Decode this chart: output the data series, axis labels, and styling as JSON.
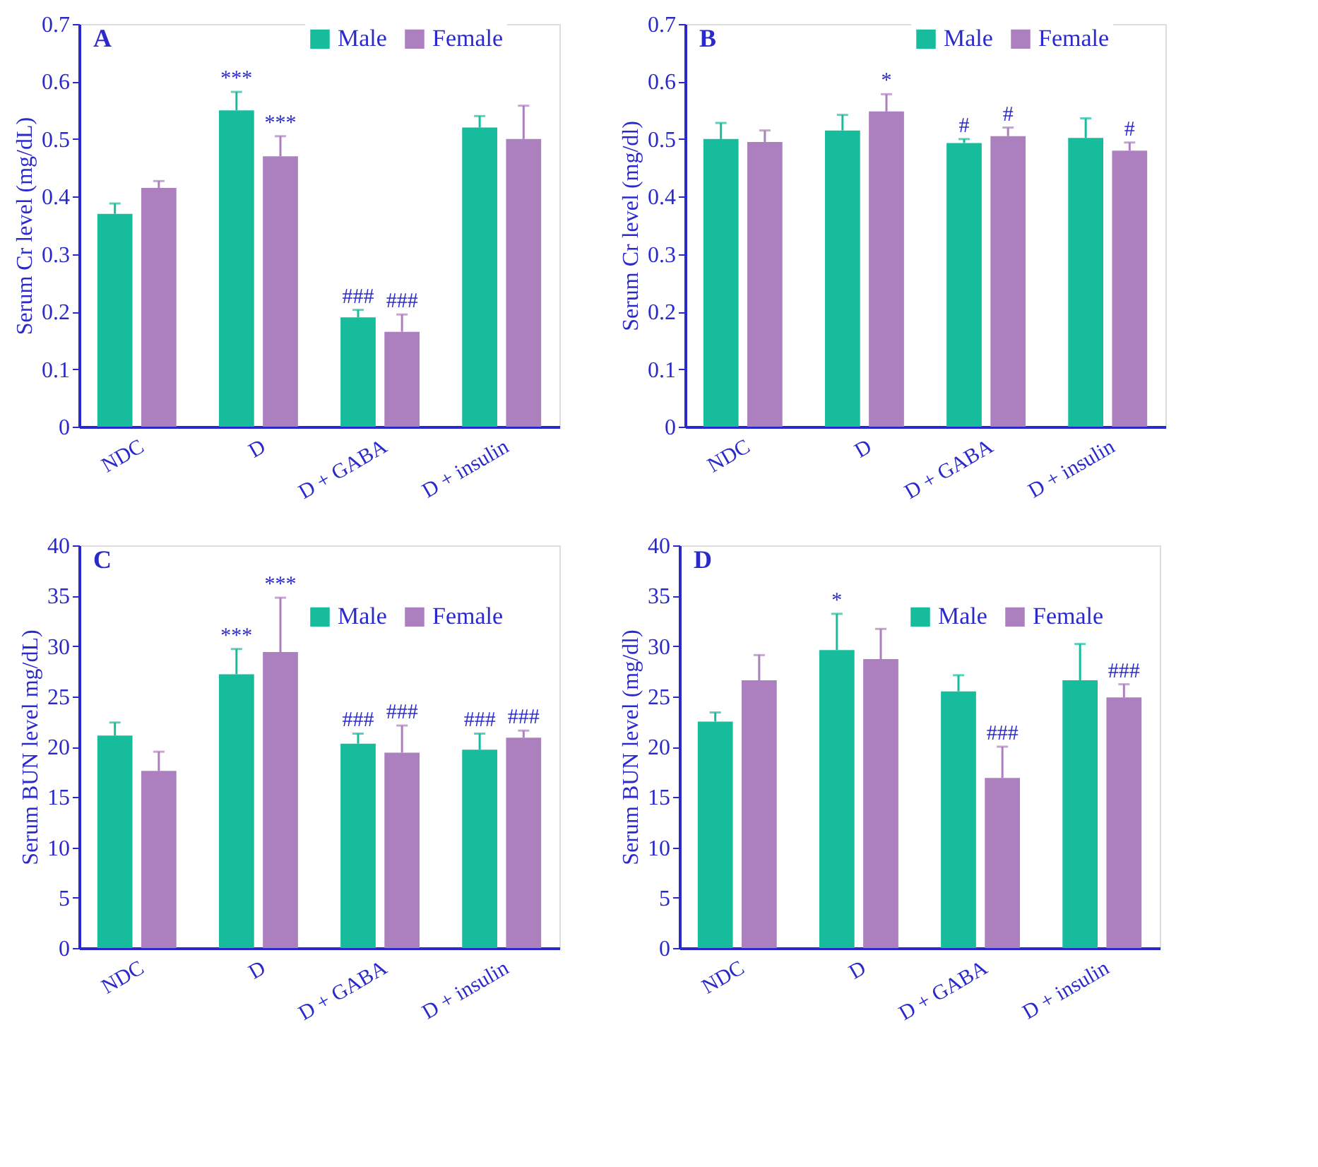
{
  "chart_data": [
    {
      "type": "bar",
      "title": "A",
      "ylabel": "Serum Cr level (mg/dL)",
      "categories": [
        "NDC",
        "D",
        "D + GABA",
        "D + insulin"
      ],
      "series": [
        {
          "name": "Male",
          "color": "#16bc9c",
          "values": [
            0.37,
            0.55,
            0.19,
            0.52
          ],
          "errors": [
            0.018,
            0.032,
            0.013,
            0.02
          ],
          "value_labels": [
            null,
            "***",
            "###",
            null
          ]
        },
        {
          "name": "Female",
          "color": "#ac7fbf",
          "values": [
            0.415,
            0.47,
            0.165,
            0.5
          ],
          "errors": [
            0.012,
            0.035,
            0.03,
            0.058
          ],
          "value_labels": [
            null,
            "***",
            "###",
            null
          ]
        }
      ],
      "ylim": [
        0,
        0.7
      ],
      "yticks": [
        0,
        0.1,
        0.2,
        0.3,
        0.4,
        0.5,
        0.6,
        0.7
      ],
      "legend": "top right",
      "grid": false
    },
    {
      "type": "bar",
      "title": "B",
      "ylabel": "Serum Cr level (mg/dl)",
      "categories": [
        "NDC",
        "D",
        "D + GABA",
        "D + insulin"
      ],
      "series": [
        {
          "name": "Male",
          "color": "#16bc9c",
          "values": [
            0.5,
            0.515,
            0.493,
            0.502
          ],
          "errors": [
            0.028,
            0.027,
            0.007,
            0.034
          ],
          "value_labels": [
            null,
            null,
            "#",
            null
          ]
        },
        {
          "name": "Female",
          "color": "#ac7fbf",
          "values": [
            0.495,
            0.548,
            0.505,
            0.48
          ],
          "errors": [
            0.02,
            0.03,
            0.015,
            0.014
          ],
          "value_labels": [
            null,
            "*",
            "#",
            "#"
          ]
        }
      ],
      "ylim": [
        0,
        0.7
      ],
      "yticks": [
        0,
        0.1,
        0.2,
        0.3,
        0.4,
        0.5,
        0.6,
        0.7
      ],
      "legend": "top right",
      "grid": false
    },
    {
      "type": "bar",
      "title": "C",
      "ylabel": "Serum BUN level mg/dL)",
      "categories": [
        "NDC",
        "D",
        "D + GABA",
        "D + insulin"
      ],
      "series": [
        {
          "name": "Male",
          "color": "#16bc9c",
          "values": [
            21.1,
            27.2,
            20.3,
            19.7
          ],
          "errors": [
            1.3,
            2.5,
            1.0,
            1.6
          ],
          "value_labels": [
            null,
            "***",
            "###",
            "###"
          ]
        },
        {
          "name": "Female",
          "color": "#ac7fbf",
          "values": [
            17.6,
            29.4,
            19.4,
            20.9
          ],
          "errors": [
            1.9,
            5.4,
            2.7,
            0.7
          ],
          "value_labels": [
            null,
            "***",
            "###",
            "###"
          ]
        }
      ],
      "ylim": [
        0,
        40
      ],
      "yticks": [
        0,
        5,
        10,
        15,
        20,
        25,
        30,
        35,
        40
      ],
      "legend": "top right",
      "grid": false
    },
    {
      "type": "bar",
      "title": "D",
      "ylabel": "Serum BUN level (mg/dl)",
      "categories": [
        "NDC",
        "D",
        "D + GABA",
        "D + insulin"
      ],
      "series": [
        {
          "name": "Male",
          "color": "#16bc9c",
          "values": [
            22.5,
            29.6,
            25.5,
            26.6
          ],
          "errors": [
            0.9,
            3.6,
            1.6,
            3.6
          ],
          "value_labels": [
            null,
            "*",
            null,
            null
          ]
        },
        {
          "name": "Female",
          "color": "#ac7fbf",
          "values": [
            26.6,
            28.7,
            16.9,
            24.9
          ],
          "errors": [
            2.5,
            3.0,
            3.1,
            1.3
          ],
          "value_labels": [
            null,
            null,
            "###",
            "###"
          ]
        }
      ],
      "ylim": [
        0,
        40
      ],
      "yticks": [
        0,
        5,
        10,
        15,
        20,
        25,
        30,
        35,
        40
      ],
      "legend": "top right",
      "grid": false
    }
  ]
}
